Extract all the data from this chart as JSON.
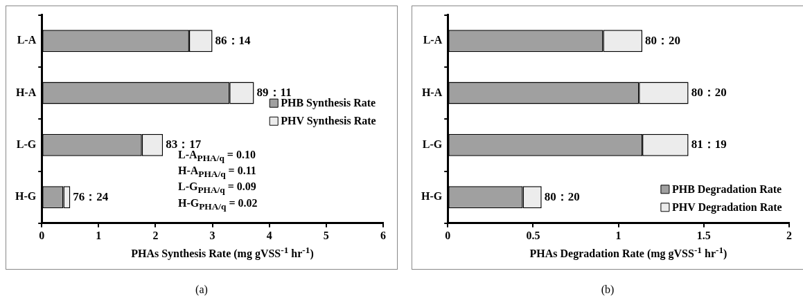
{
  "chart_data": [
    {
      "type": "bar",
      "orientation": "horizontal",
      "stacked": true,
      "title": "(a)",
      "xlabel": "PHAs Synthesis Rate (mg gVSS$^{-1}$ hr$^{-1}$)",
      "categories": [
        "L-A",
        "H-A",
        "L-G",
        "H-G"
      ],
      "series": [
        {
          "name": "PHB Synthesis Rate",
          "color": "#a0a0a0",
          "values": [
            2.59,
            3.3,
            1.76,
            0.38
          ]
        },
        {
          "name": "PHV Synthesis Rate",
          "color": "#ececec",
          "values": [
            0.41,
            0.43,
            0.37,
            0.12
          ]
        }
      ],
      "xlim": [
        0,
        6
      ],
      "xticks": [
        0,
        1,
        2,
        3,
        4,
        5,
        6
      ],
      "grid": false,
      "legend": "right",
      "annotations": [
        {
          "text": "86：14",
          "x": 3.0,
          "y": "L-A"
        },
        {
          "text": "89：11",
          "x": 3.73,
          "y": "H-A"
        },
        {
          "text": "83：17",
          "x": 2.13,
          "y": "L-G"
        },
        {
          "text": "76：24",
          "x": 0.5,
          "y": "H-G"
        },
        "L-A$_{PHA/q}$ = 0.10",
        "H-A$_{PHA/q}$ = 0.11",
        "L-G$_{PHA/q}$ = 0.09",
        "H-G$_{PHA/q}$ = 0.02"
      ]
    },
    {
      "type": "bar",
      "orientation": "horizontal",
      "stacked": true,
      "title": "(b)",
      "xlabel": "PHAs Degradation Rate (mg gVSS$^{-1}$ hr$^{-1}$)",
      "categories": [
        "L-A",
        "H-A",
        "L-G",
        "H-G"
      ],
      "series": [
        {
          "name": "PHB Degradation Rate",
          "color": "#a0a0a0",
          "values": [
            0.91,
            1.12,
            1.14,
            0.44
          ]
        },
        {
          "name": "PHV Degradation Rate",
          "color": "#ececec",
          "values": [
            0.23,
            0.29,
            0.27,
            0.11
          ]
        }
      ],
      "xlim": [
        0,
        2
      ],
      "xticks": [
        0,
        0.5,
        1,
        1.5,
        2
      ],
      "grid": false,
      "legend": "bottom right",
      "annotations": [
        {
          "text": "80：20",
          "x": 1.14,
          "y": "L-A"
        },
        {
          "text": "80：20",
          "x": 1.41,
          "y": "H-A"
        },
        {
          "text": "81：19",
          "x": 1.41,
          "y": "L-G"
        },
        {
          "text": "80：20",
          "x": 0.55,
          "y": "H-G"
        }
      ]
    }
  ]
}
